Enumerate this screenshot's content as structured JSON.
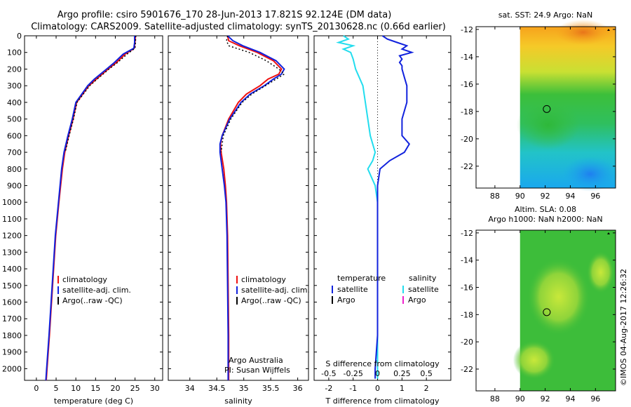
{
  "title": {
    "line1": "Argo profile: csiro 5901676_170 28-Jun-2013 17.821S 92.124E (DM data)",
    "line2": "Climatology: CARS2009. Satellite-adjusted climatology: synTS_20130628.nc (0.66d earlier)"
  },
  "colors": {
    "climatology": "#ee1111",
    "satellite": "#1122dd",
    "argo": "#000000",
    "sal_satellite": "#22ddee",
    "sal_argo": "#ee22cc"
  },
  "watermark": "©IMOS 04-Aug-2017 12:26:32",
  "chart_data": [
    {
      "type": "line",
      "name": "temperature-profile",
      "xlabel": "temperature (deg C)",
      "ylabel": "",
      "xlim": [
        -3,
        32
      ],
      "ylim": [
        2070,
        0
      ],
      "xticks": [
        "0",
        "5",
        "10",
        "15",
        "20",
        "25",
        "30"
      ],
      "xtick_values": [
        0,
        5,
        10,
        15,
        20,
        25,
        30
      ],
      "yticks": [
        "0",
        "100",
        "200",
        "300",
        "400",
        "500",
        "600",
        "700",
        "800",
        "900",
        "1000",
        "1100",
        "1200",
        "1300",
        "1400",
        "1500",
        "1600",
        "1700",
        "1800",
        "1900",
        "2000"
      ],
      "ytick_values": [
        0,
        100,
        200,
        300,
        400,
        500,
        600,
        700,
        800,
        900,
        1000,
        1100,
        1200,
        1300,
        1400,
        1500,
        1600,
        1700,
        1800,
        1900,
        2000
      ],
      "legend": [
        "climatology",
        "satellite-adj. clim.",
        "Argo(..raw -QC)"
      ],
      "series": [
        {
          "name": "climatology",
          "depth": [
            0,
            40,
            75,
            110,
            160,
            200,
            260,
            300,
            400,
            500,
            600,
            700,
            800,
            1000,
            1200,
            1500,
            1800,
            2000,
            2070
          ],
          "values": [
            25.1,
            25.0,
            24.8,
            22.5,
            20.3,
            18.2,
            15.2,
            13.3,
            10.2,
            9.3,
            8.2,
            7.2,
            6.6,
            5.7,
            4.9,
            4.1,
            3.3,
            2.7,
            2.5
          ]
        },
        {
          "name": "satellite-adj. clim.",
          "depth": [
            0,
            40,
            75,
            110,
            160,
            200,
            260,
            300,
            400,
            500,
            600,
            700,
            800,
            1000,
            1200,
            1500,
            1800,
            2000,
            2070
          ],
          "values": [
            24.9,
            24.9,
            24.7,
            22.0,
            19.8,
            17.8,
            14.7,
            13.0,
            10.0,
            9.1,
            8.0,
            7.0,
            6.4,
            5.6,
            4.8,
            4.0,
            3.2,
            2.6,
            2.4
          ]
        },
        {
          "name": "Argo(..raw -QC)",
          "depth": [
            0,
            40,
            75,
            110,
            160,
            200,
            260,
            300,
            400,
            500,
            600,
            700
          ],
          "values": [
            25.2,
            25.1,
            25.0,
            23.0,
            20.6,
            18.4,
            15.4,
            13.5,
            10.3,
            9.4,
            8.3,
            7.3
          ]
        }
      ]
    },
    {
      "type": "line",
      "name": "salinity-profile",
      "xlabel": "salinity",
      "xlim": [
        33.6,
        36.2
      ],
      "ylim": [
        2070,
        0
      ],
      "xticks": [
        "34",
        "34.5",
        "35",
        "35.5",
        "36"
      ],
      "xtick_values": [
        34,
        34.5,
        35,
        35.5,
        36
      ],
      "legend": [
        "climatology",
        "satellite-adj. clim.",
        "Argo(..raw -QC)"
      ],
      "credit_line1": "Argo Australia",
      "credit_line2": "PI: Susan Wijffels",
      "series": [
        {
          "name": "climatology",
          "depth": [
            0,
            30,
            60,
            100,
            150,
            200,
            230,
            260,
            300,
            350,
            400,
            500,
            600,
            650,
            700,
            800,
            900,
            1000,
            1200,
            1500,
            1800,
            2000,
            2070
          ],
          "values": [
            34.7,
            34.72,
            34.92,
            35.25,
            35.55,
            35.7,
            35.65,
            35.45,
            35.3,
            35.05,
            34.9,
            34.72,
            34.6,
            34.57,
            34.58,
            34.63,
            34.66,
            34.68,
            34.7,
            34.71,
            34.72,
            34.72,
            34.72
          ]
        },
        {
          "name": "satellite-adj. clim.",
          "depth": [
            0,
            30,
            60,
            100,
            150,
            200,
            230,
            260,
            300,
            350,
            400,
            500,
            600,
            650,
            700,
            800,
            900,
            1000,
            1200,
            1500,
            1800,
            2000,
            2070
          ],
          "values": [
            34.7,
            34.8,
            34.98,
            35.3,
            35.6,
            35.75,
            35.7,
            35.55,
            35.38,
            35.12,
            34.95,
            34.74,
            34.6,
            34.56,
            34.56,
            34.6,
            34.64,
            34.67,
            34.69,
            34.7,
            34.71,
            34.71,
            34.71
          ]
        },
        {
          "name": "Argo(..raw -QC)",
          "depth": [
            0,
            30,
            60,
            100,
            150,
            200,
            230,
            260,
            300,
            350,
            400,
            500,
            600,
            700
          ],
          "values": [
            34.7,
            34.68,
            34.72,
            35.1,
            35.42,
            35.65,
            35.75,
            35.6,
            35.4,
            35.15,
            34.97,
            34.76,
            34.62,
            34.58
          ]
        }
      ]
    },
    {
      "type": "line",
      "name": "difference-profile",
      "xlabel": "T difference from climatology",
      "xlabel_top": "S difference from climatology",
      "xlim": [
        -2.6,
        3.0
      ],
      "ylim": [
        2070,
        0
      ],
      "xticks": [
        "-2",
        "-1",
        "0",
        "1",
        "2"
      ],
      "xtick_values": [
        -2,
        -1,
        0,
        1,
        2
      ],
      "xticks_top": [
        "-0.5",
        "-0.25",
        "0",
        "0.25",
        "0.5"
      ],
      "xtick_values_top": [
        -2,
        -1,
        0,
        1,
        2
      ],
      "legend_left_title": "temperature",
      "legend_right_title": "salinity",
      "legend_left": [
        "satellite",
        "Argo"
      ],
      "legend_right": [
        "satellite",
        "Argo"
      ],
      "series": [
        {
          "name": "temperature satellite",
          "depth": [
            0,
            20,
            40,
            60,
            80,
            100,
            120,
            140,
            160,
            180,
            200,
            250,
            300,
            400,
            500,
            600,
            650,
            700,
            750,
            800,
            900,
            1000,
            1200,
            1500,
            1800,
            2000,
            2060
          ],
          "values": [
            0.2,
            0.4,
            0.8,
            1.2,
            1.0,
            1.4,
            0.9,
            1.0,
            0.9,
            1.0,
            1.0,
            1.1,
            1.2,
            1.2,
            1.0,
            1.0,
            1.3,
            1.1,
            0.5,
            0.1,
            0.0,
            0.0,
            0.0,
            0.0,
            0.0,
            -0.1,
            -0.1
          ]
        },
        {
          "name": "salinity satellite",
          "depth": [
            0,
            20,
            40,
            60,
            80,
            100,
            140,
            200,
            300,
            400,
            500,
            600,
            650,
            700,
            750,
            800,
            900,
            1000,
            1200,
            1500,
            1800,
            2000,
            2060
          ],
          "values": [
            -1.4,
            -1.2,
            -1.6,
            -1.0,
            -1.4,
            -1.1,
            -1.0,
            -0.9,
            -0.6,
            -0.5,
            -0.4,
            -0.3,
            -0.2,
            -0.1,
            -0.2,
            -0.4,
            -0.1,
            0.0,
            0.0,
            0.0,
            0.0,
            0.0,
            0.0
          ]
        }
      ]
    },
    {
      "type": "heatmap",
      "name": "sst-map",
      "title": "sat. SST: 24.9 Argo: NaN",
      "xlim": [
        86.5,
        97.6
      ],
      "ylim": [
        -23.6,
        -11.8
      ],
      "xticks": [
        "88",
        "90",
        "92",
        "94",
        "96"
      ],
      "xtick_values": [
        88,
        90,
        92,
        94,
        96
      ],
      "yticks": [
        "-12",
        "-14",
        "-16",
        "-18",
        "-20",
        "-22"
      ],
      "ytick_values": [
        -12,
        -14,
        -16,
        -18,
        -20,
        -22
      ],
      "data_xlim": [
        90,
        97.6
      ],
      "marker": [
        92.124,
        -17.821
      ]
    },
    {
      "type": "heatmap",
      "name": "sla-map",
      "title_line1": "Altim. SLA: 0.08",
      "title_line2": "Argo h1000: NaN h2000: NaN",
      "xlim": [
        86.5,
        97.6
      ],
      "ylim": [
        -23.6,
        -11.8
      ],
      "xticks": [
        "88",
        "90",
        "92",
        "94",
        "96"
      ],
      "xtick_values": [
        88,
        90,
        92,
        94,
        96
      ],
      "yticks": [
        "-12",
        "-14",
        "-16",
        "-18",
        "-20",
        "-22"
      ],
      "ytick_values": [
        -12,
        -14,
        -16,
        -18,
        -20,
        -22
      ],
      "data_xlim": [
        90,
        97.6
      ],
      "marker": [
        92.124,
        -17.821
      ]
    }
  ]
}
